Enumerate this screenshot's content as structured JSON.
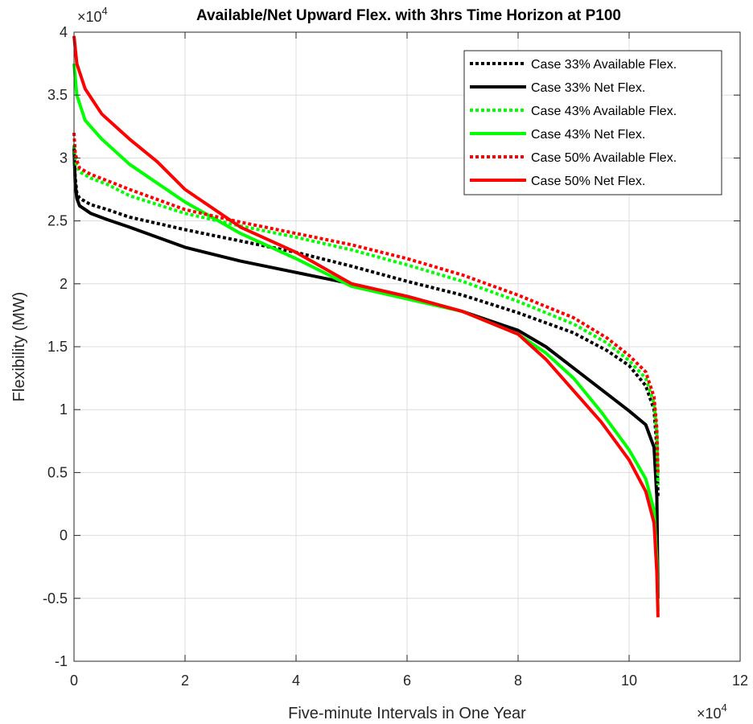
{
  "chart_data": {
    "type": "line",
    "title": "Available/Net Upward Flex. with 3hrs Time Horizon at P100",
    "xlabel": "Five-minute Intervals in One Year",
    "ylabel": "Flexibility (MW)",
    "x_multiplier_label": "×10",
    "x_multiplier_exp": "4",
    "y_multiplier_label": "×10",
    "y_multiplier_exp": "4",
    "xlim": [
      0,
      12
    ],
    "ylim": [
      -1,
      4
    ],
    "x_ticks": [
      0,
      2,
      4,
      6,
      8,
      10,
      12
    ],
    "x_tick_labels": [
      "0",
      "2",
      "4",
      "6",
      "8",
      "10",
      "12"
    ],
    "y_ticks": [
      -1,
      -0.5,
      0,
      0.5,
      1,
      1.5,
      2,
      2.5,
      3,
      3.5,
      4
    ],
    "y_tick_labels": [
      "-1",
      "-0.5",
      "0",
      "0.5",
      "1",
      "1.5",
      "2",
      "2.5",
      "3",
      "3.5",
      "4"
    ],
    "grid": true,
    "legend_position": "top-right",
    "series": [
      {
        "name": "Case 33% Available Flex.",
        "color": "#000000",
        "style": "dotted",
        "points": [
          [
            0,
            3.1
          ],
          [
            0.02,
            2.85
          ],
          [
            0.05,
            2.72
          ],
          [
            0.1,
            2.68
          ],
          [
            0.3,
            2.63
          ],
          [
            0.6,
            2.59
          ],
          [
            1,
            2.53
          ],
          [
            2,
            2.43
          ],
          [
            3,
            2.34
          ],
          [
            4,
            2.25
          ],
          [
            5,
            2.14
          ],
          [
            6,
            2.02
          ],
          [
            7,
            1.91
          ],
          [
            8,
            1.77
          ],
          [
            9,
            1.61
          ],
          [
            9.6,
            1.47
          ],
          [
            10,
            1.35
          ],
          [
            10.3,
            1.19
          ],
          [
            10.45,
            1.0
          ],
          [
            10.5,
            0.7
          ],
          [
            10.52,
            0.3
          ]
        ]
      },
      {
        "name": "Case 33% Net Flex.",
        "color": "#000000",
        "style": "solid",
        "points": [
          [
            0,
            3.1
          ],
          [
            0.02,
            2.8
          ],
          [
            0.05,
            2.68
          ],
          [
            0.1,
            2.62
          ],
          [
            0.3,
            2.56
          ],
          [
            0.6,
            2.51
          ],
          [
            1,
            2.45
          ],
          [
            2,
            2.29
          ],
          [
            3,
            2.18
          ],
          [
            4,
            2.09
          ],
          [
            5,
            2.0
          ],
          [
            6,
            1.9
          ],
          [
            7,
            1.78
          ],
          [
            8,
            1.63
          ],
          [
            8.5,
            1.5
          ],
          [
            9,
            1.33
          ],
          [
            9.5,
            1.16
          ],
          [
            10,
            0.99
          ],
          [
            10.3,
            0.88
          ],
          [
            10.45,
            0.7
          ],
          [
            10.5,
            0.3
          ],
          [
            10.52,
            -0.5
          ]
        ]
      },
      {
        "name": "Case 43% Available Flex.",
        "color": "#00ff00",
        "style": "dotted",
        "points": [
          [
            0,
            3.1
          ],
          [
            0.02,
            3.0
          ],
          [
            0.05,
            2.94
          ],
          [
            0.1,
            2.89
          ],
          [
            0.3,
            2.84
          ],
          [
            0.6,
            2.79
          ],
          [
            1,
            2.7
          ],
          [
            2,
            2.56
          ],
          [
            3,
            2.46
          ],
          [
            4,
            2.37
          ],
          [
            5,
            2.27
          ],
          [
            6,
            2.15
          ],
          [
            7,
            2.02
          ],
          [
            8,
            1.86
          ],
          [
            9,
            1.68
          ],
          [
            9.6,
            1.53
          ],
          [
            10,
            1.39
          ],
          [
            10.3,
            1.25
          ],
          [
            10.45,
            1.05
          ],
          [
            10.5,
            0.8
          ],
          [
            10.52,
            0.4
          ]
        ]
      },
      {
        "name": "Case 43% Net Flex.",
        "color": "#00ff00",
        "style": "solid",
        "points": [
          [
            0,
            3.75
          ],
          [
            0.05,
            3.5
          ],
          [
            0.2,
            3.3
          ],
          [
            0.5,
            3.15
          ],
          [
            1,
            2.95
          ],
          [
            1.5,
            2.8
          ],
          [
            2,
            2.65
          ],
          [
            3,
            2.4
          ],
          [
            4,
            2.2
          ],
          [
            5,
            1.98
          ],
          [
            6,
            1.88
          ],
          [
            7,
            1.78
          ],
          [
            8,
            1.6
          ],
          [
            8.5,
            1.45
          ],
          [
            9,
            1.25
          ],
          [
            9.5,
            0.98
          ],
          [
            10,
            0.68
          ],
          [
            10.3,
            0.45
          ],
          [
            10.45,
            0.2
          ],
          [
            10.5,
            -0.2
          ],
          [
            10.52,
            -0.6
          ]
        ]
      },
      {
        "name": "Case 50% Available Flex.",
        "color": "#ff0000",
        "style": "dotted",
        "points": [
          [
            0,
            3.2
          ],
          [
            0.02,
            3.05
          ],
          [
            0.05,
            2.98
          ],
          [
            0.1,
            2.92
          ],
          [
            0.3,
            2.87
          ],
          [
            0.6,
            2.82
          ],
          [
            1,
            2.75
          ],
          [
            2,
            2.59
          ],
          [
            3,
            2.49
          ],
          [
            4,
            2.4
          ],
          [
            5,
            2.31
          ],
          [
            6,
            2.2
          ],
          [
            7,
            2.07
          ],
          [
            8,
            1.91
          ],
          [
            9,
            1.73
          ],
          [
            9.6,
            1.57
          ],
          [
            10,
            1.43
          ],
          [
            10.3,
            1.3
          ],
          [
            10.45,
            1.1
          ],
          [
            10.5,
            0.85
          ],
          [
            10.52,
            0.5
          ]
        ]
      },
      {
        "name": "Case 50% Net Flex.",
        "color": "#ff0000",
        "style": "solid",
        "points": [
          [
            0,
            3.97
          ],
          [
            0.05,
            3.75
          ],
          [
            0.2,
            3.55
          ],
          [
            0.5,
            3.35
          ],
          [
            1,
            3.15
          ],
          [
            1.5,
            2.97
          ],
          [
            2,
            2.75
          ],
          [
            3,
            2.45
          ],
          [
            4,
            2.25
          ],
          [
            5,
            2.0
          ],
          [
            6,
            1.9
          ],
          [
            7,
            1.78
          ],
          [
            8,
            1.6
          ],
          [
            8.5,
            1.4
          ],
          [
            9,
            1.15
          ],
          [
            9.5,
            0.9
          ],
          [
            10,
            0.6
          ],
          [
            10.3,
            0.35
          ],
          [
            10.45,
            0.1
          ],
          [
            10.5,
            -0.3
          ],
          [
            10.52,
            -0.65
          ]
        ]
      }
    ]
  }
}
